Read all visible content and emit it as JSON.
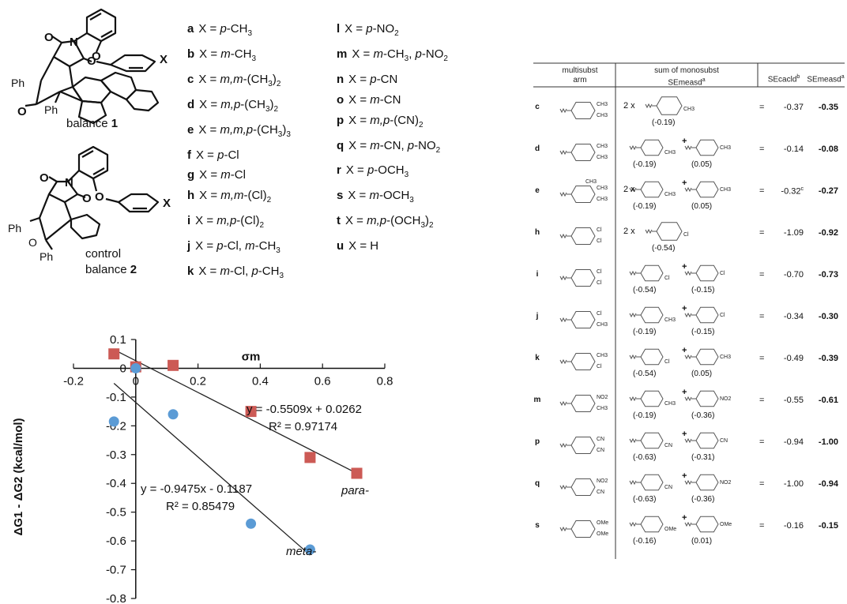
{
  "structures": {
    "balance1": {
      "caption": "balance ",
      "number": "1",
      "ph_top": "Ph",
      "ph_bot": "Ph",
      "x_label": "X"
    },
    "balance2": {
      "caption1": "control",
      "caption2": "balance ",
      "number": "2",
      "ph_top": "Ph",
      "ph_bot": "Ph",
      "o_label": "O",
      "x_label": "X"
    }
  },
  "substituents": [
    {
      "key": "a",
      "text": "X = p-CH3"
    },
    {
      "key": "b",
      "text": "X = m-CH3"
    },
    {
      "key": "c",
      "text": "X = m,m-(CH3)2"
    },
    {
      "key": "d",
      "text": "X = m,p-(CH3)2"
    },
    {
      "key": "e",
      "text": "X = m,m,p-(CH3)3"
    },
    {
      "key": "f",
      "text": "X = p-Cl"
    },
    {
      "key": "g",
      "text": "X = m-Cl"
    },
    {
      "key": "h",
      "text": "X = m,m-(Cl)2"
    },
    {
      "key": "i",
      "text": "X = m,p-(Cl)2"
    },
    {
      "key": "j",
      "text": "X = p-Cl, m-CH3"
    },
    {
      "key": "k",
      "text": "X = m-Cl, p-CH3"
    },
    {
      "key": "l",
      "text": "X = p-NO2"
    },
    {
      "key": "m",
      "text": "X = m-CH3, p-NO2"
    },
    {
      "key": "n",
      "text": "X = p-CN"
    },
    {
      "key": "o",
      "text": "X = m-CN"
    },
    {
      "key": "p",
      "text": "X = m,p-(CN)2"
    },
    {
      "key": "q",
      "text": "X = m-CN, p-NO2"
    },
    {
      "key": "r",
      "text": "X = p-OCH3"
    },
    {
      "key": "s",
      "text": "X = m-OCH3"
    },
    {
      "key": "t",
      "text": "X = m,p-(OCH3)2"
    },
    {
      "key": "u",
      "text": "X = H"
    }
  ],
  "chart_data": {
    "type": "scatter",
    "xlabel": "σm",
    "ylabel": "ΔG1 - ΔG2 (kcal/mol)",
    "xlim": [
      -0.2,
      0.8
    ],
    "ylim": [
      -0.8,
      0.1
    ],
    "xticks": [
      "-0.2",
      "0",
      "0.2",
      "0.4",
      "0.6",
      "0.8"
    ],
    "yticks": [
      "0.1",
      "0",
      "-0.1",
      "-0.2",
      "-0.3",
      "-0.4",
      "-0.5",
      "-0.6",
      "-0.7",
      "-0.8"
    ],
    "series": [
      {
        "name": "para-",
        "color": "#cc5a55",
        "marker": "square",
        "x": [
          -0.07,
          0.0,
          0.12,
          0.37,
          0.56,
          0.71
        ],
        "y": [
          0.05,
          0.005,
          0.01,
          -0.15,
          -0.31,
          -0.365
        ],
        "fit": {
          "slope": -0.5509,
          "intercept": 0.0262,
          "x_range": [
            -0.07,
            0.71
          ],
          "equation": "y = -0.5509x + 0.0262",
          "r2": "R² = 0.97174"
        }
      },
      {
        "name": "meta-",
        "color": "#5b9bd5",
        "marker": "circle",
        "x": [
          -0.07,
          0.0,
          0.12,
          0.37,
          0.56
        ],
        "y": [
          -0.185,
          0.0,
          -0.16,
          -0.54,
          -0.63
        ],
        "fit": {
          "slope": -0.9475,
          "intercept": -0.1187,
          "x_range": [
            -0.07,
            0.56
          ],
          "equation": "y = -0.9475x - 0.1187",
          "r2": "R² = 0.85479"
        }
      }
    ]
  },
  "table": {
    "headers": {
      "arm1": "multisubst",
      "arm2": "arm",
      "sum1": "sum of monosubst",
      "sum2": "SEmeasd",
      "sum2_sup": "a",
      "calc": "SEcacld",
      "calc_sup": "b",
      "meas": "SEmeasd",
      "meas_sup": "a"
    },
    "rows": [
      {
        "code": "c",
        "mult": "2 x",
        "v1": "(-0.19)",
        "v2": "",
        "plus": "",
        "eq": "=",
        "calc": "-0.37",
        "meas": "-0.35"
      },
      {
        "code": "d",
        "mult": "",
        "v1": "(-0.19)",
        "v2": "(0.05)",
        "plus": "+",
        "eq": "=",
        "calc": "-0.14",
        "meas": "-0.08"
      },
      {
        "code": "e",
        "mult": "2 x",
        "v1": "(-0.19)",
        "v2": "(0.05)",
        "plus": "+",
        "eq": "=",
        "calc": "-0.32c",
        "meas": "-0.27"
      },
      {
        "code": "h",
        "mult": "2 x",
        "v1": "(-0.54)",
        "v2": "",
        "plus": "",
        "eq": "=",
        "calc": "-1.09",
        "meas": "-0.92"
      },
      {
        "code": "i",
        "mult": "",
        "v1": "(-0.54)",
        "v2": "(-0.15)",
        "plus": "+",
        "eq": "=",
        "calc": "-0.70",
        "meas": "-0.73"
      },
      {
        "code": "j",
        "mult": "",
        "v1": "(-0.19)",
        "v2": "(-0.15)",
        "plus": "+",
        "eq": "=",
        "calc": "-0.34",
        "meas": "-0.30"
      },
      {
        "code": "k",
        "mult": "",
        "v1": "(-0.54)",
        "v2": "(0.05)",
        "plus": "+",
        "eq": "=",
        "calc": "-0.49",
        "meas": "-0.39"
      },
      {
        "code": "m",
        "mult": "",
        "v1": "(-0.19)",
        "v2": "(-0.36)",
        "plus": "+",
        "eq": "=",
        "calc": "-0.55",
        "meas": "-0.61"
      },
      {
        "code": "p",
        "mult": "",
        "v1": "(-0.63)",
        "v2": "(-0.31)",
        "plus": "+",
        "eq": "=",
        "calc": "-0.94",
        "meas": "-1.00"
      },
      {
        "code": "q",
        "mult": "",
        "v1": "(-0.63)",
        "v2": "(-0.36)",
        "plus": "+",
        "eq": "=",
        "calc": "-1.00",
        "meas": "-0.94"
      },
      {
        "code": "s",
        "mult": "",
        "v1": "(-0.16)",
        "v2": "(0.01)",
        "plus": "+",
        "eq": "=",
        "calc": "-0.16",
        "meas": "-0.15"
      }
    ],
    "arm_labels": [
      {
        "a": "CH3",
        "b": "CH3"
      },
      {
        "a": "CH3",
        "b": "CH3"
      },
      {
        "a": "CH3",
        "b": "CH3",
        "c": "CH3"
      },
      {
        "a": "Cl",
        "b": "Cl"
      },
      {
        "a": "Cl",
        "b": "Cl"
      },
      {
        "a": "Cl",
        "b": "CH3"
      },
      {
        "a": "CH3",
        "b": "Cl"
      },
      {
        "a": "NO2",
        "b": "CH3"
      },
      {
        "a": "CN",
        "b": "CN"
      },
      {
        "a": "NO2",
        "b": "CN"
      },
      {
        "a": "OMe",
        "b": "OMe"
      }
    ],
    "mono_labels": [
      {
        "m1": "CH3",
        "m2": ""
      },
      {
        "m1": "CH3",
        "m2": "CH3"
      },
      {
        "m1": "CH3",
        "m2": "CH3"
      },
      {
        "m1": "Cl",
        "m2": ""
      },
      {
        "m1": "Cl",
        "m2": "Cl"
      },
      {
        "m1": "CH3",
        "m2": "Cl"
      },
      {
        "m1": "Cl",
        "m2": "CH3"
      },
      {
        "m1": "CH3",
        "m2": "NO2"
      },
      {
        "m1": "CN",
        "m2": "CN"
      },
      {
        "m1": "CN",
        "m2": "NO2"
      },
      {
        "m1": "OMe",
        "m2": "OMe"
      }
    ]
  }
}
